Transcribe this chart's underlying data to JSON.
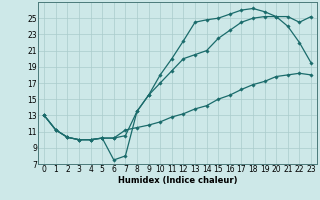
{
  "xlabel": "Humidex (Indice chaleur)",
  "background_color": "#cde8e8",
  "grid_color": "#aacccc",
  "line_color": "#1a6b6b",
  "xlim": [
    -0.5,
    23.5
  ],
  "ylim": [
    7,
    27
  ],
  "yticks": [
    7,
    9,
    11,
    13,
    15,
    17,
    19,
    21,
    23,
    25
  ],
  "xticks": [
    0,
    1,
    2,
    3,
    4,
    5,
    6,
    7,
    8,
    9,
    10,
    11,
    12,
    13,
    14,
    15,
    16,
    17,
    18,
    19,
    20,
    21,
    22,
    23
  ],
  "xtick_labels": [
    "0",
    "1",
    "2",
    "3",
    "4",
    "5",
    "6",
    "7",
    "8",
    "9",
    "10",
    "11",
    "12",
    "13",
    "14",
    "15",
    "16",
    "17",
    "18",
    "19",
    "20",
    "21",
    "22",
    "23"
  ],
  "line1_x": [
    0,
    1,
    2,
    3,
    4,
    5,
    6,
    7,
    8,
    9,
    10,
    11,
    12,
    13,
    14,
    15,
    16,
    17,
    18,
    19,
    20,
    21,
    22,
    23
  ],
  "line1_y": [
    13,
    11.2,
    10.3,
    10.0,
    10.0,
    10.2,
    7.5,
    8.0,
    13.5,
    15.5,
    18.0,
    20.0,
    22.2,
    24.5,
    24.8,
    25.0,
    25.5,
    26.0,
    26.2,
    25.8,
    25.2,
    25.2,
    24.5,
    25.2
  ],
  "line2_x": [
    0,
    1,
    2,
    3,
    4,
    5,
    6,
    7,
    8,
    9,
    10,
    11,
    12,
    13,
    14,
    15,
    16,
    17,
    18,
    19,
    20,
    21,
    22,
    23
  ],
  "line2_y": [
    13,
    11.2,
    10.3,
    10.0,
    10.0,
    10.2,
    10.2,
    10.5,
    13.5,
    15.5,
    17.0,
    18.5,
    20.0,
    20.5,
    21.0,
    22.5,
    23.5,
    24.5,
    25.0,
    25.2,
    25.2,
    24.0,
    22.0,
    19.5
  ],
  "line3_x": [
    0,
    1,
    2,
    3,
    4,
    5,
    6,
    7,
    8,
    9,
    10,
    11,
    12,
    13,
    14,
    15,
    16,
    17,
    18,
    19,
    20,
    21,
    22,
    23
  ],
  "line3_y": [
    13,
    11.2,
    10.3,
    10.0,
    10.0,
    10.2,
    10.2,
    11.2,
    11.5,
    11.8,
    12.2,
    12.8,
    13.2,
    13.8,
    14.2,
    15.0,
    15.5,
    16.2,
    16.8,
    17.2,
    17.8,
    18.0,
    18.2,
    18.0
  ],
  "marker": "D",
  "markersize": 1.8,
  "linewidth": 0.9,
  "xlabel_fontsize": 6.0,
  "tick_fontsize": 5.5
}
